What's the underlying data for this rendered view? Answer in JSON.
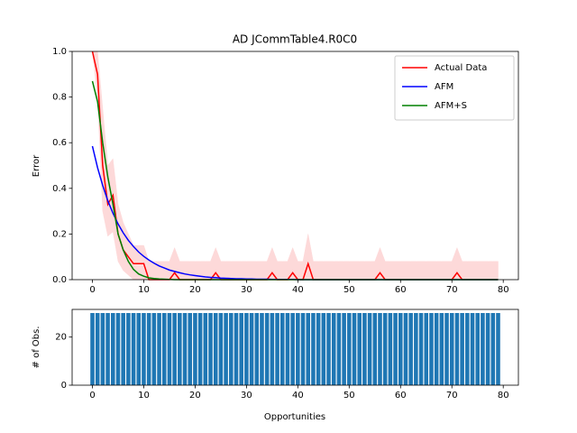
{
  "chart_data": [
    {
      "type": "line",
      "title": "AD JCommTable4.R0C0",
      "ylabel": "Error",
      "legend": "upper right",
      "x": [
        0,
        1,
        2,
        3,
        4,
        5,
        6,
        7,
        8,
        9,
        10,
        11,
        12,
        13,
        14,
        15,
        16,
        17,
        18,
        19,
        20,
        21,
        22,
        23,
        24,
        25,
        26,
        27,
        28,
        29,
        30,
        31,
        32,
        33,
        34,
        35,
        36,
        37,
        38,
        39,
        40,
        41,
        42,
        43,
        44,
        45,
        46,
        47,
        48,
        49,
        50,
        51,
        52,
        53,
        54,
        55,
        56,
        57,
        58,
        59,
        60,
        61,
        62,
        63,
        64,
        65,
        66,
        67,
        68,
        69,
        70,
        71,
        72,
        73,
        74,
        75,
        76,
        77,
        78,
        79
      ],
      "xlim": [
        -3.95,
        82.95
      ],
      "xticks": [
        0,
        10,
        20,
        30,
        40,
        50,
        60,
        70,
        80
      ],
      "ylim": [
        0,
        1
      ],
      "yticks": [
        {
          "value": 0,
          "label": "0.0"
        },
        {
          "value": 0.2,
          "label": "0.2"
        },
        {
          "value": 0.4,
          "label": "0.4"
        },
        {
          "value": 0.6,
          "label": "0.6"
        },
        {
          "value": 0.8,
          "label": "0.8"
        },
        {
          "value": 1,
          "label": "1.0"
        }
      ],
      "band": {
        "color": "#fdd9d9",
        "upper": [
          1.0,
          1.0,
          0.75,
          0.5,
          0.53,
          0.33,
          0.25,
          0.2,
          0.15,
          0.15,
          0.15,
          0.08,
          0.08,
          0.08,
          0.08,
          0.08,
          0.14,
          0.08,
          0.08,
          0.08,
          0.08,
          0.08,
          0.08,
          0.08,
          0.14,
          0.08,
          0.08,
          0.08,
          0.08,
          0.08,
          0.08,
          0.08,
          0.08,
          0.08,
          0.08,
          0.14,
          0.08,
          0.08,
          0.08,
          0.14,
          0.08,
          0.08,
          0.2,
          0.08,
          0.08,
          0.08,
          0.08,
          0.08,
          0.08,
          0.08,
          0.08,
          0.08,
          0.08,
          0.08,
          0.08,
          0.08,
          0.14,
          0.08,
          0.08,
          0.08,
          0.08,
          0.08,
          0.08,
          0.08,
          0.08,
          0.08,
          0.08,
          0.08,
          0.08,
          0.08,
          0.08,
          0.14,
          0.08,
          0.08,
          0.08,
          0.08,
          0.08,
          0.08,
          0.08,
          0.08
        ],
        "lower": [
          1.0,
          0.8,
          0.3,
          0.19,
          0.21,
          0.08,
          0.04,
          0.02,
          0,
          0,
          0,
          0,
          0,
          0,
          0,
          0,
          0,
          0,
          0,
          0,
          0,
          0,
          0,
          0,
          0,
          0,
          0,
          0,
          0,
          0,
          0,
          0,
          0,
          0,
          0,
          0,
          0,
          0,
          0,
          0,
          0,
          0,
          0,
          0,
          0,
          0,
          0,
          0,
          0,
          0,
          0,
          0,
          0,
          0,
          0,
          0,
          0,
          0,
          0,
          0,
          0,
          0,
          0,
          0,
          0,
          0,
          0,
          0,
          0,
          0,
          0,
          0,
          0,
          0,
          0,
          0,
          0,
          0,
          0,
          0
        ]
      },
      "series": [
        {
          "name": "Actual Data",
          "color": "#ff0000",
          "values": [
            1.0,
            0.9,
            0.5,
            0.33,
            0.37,
            0.2,
            0.13,
            0.1,
            0.07,
            0.07,
            0.07,
            0,
            0,
            0,
            0,
            0,
            0.03,
            0,
            0,
            0,
            0,
            0,
            0,
            0,
            0.03,
            0,
            0,
            0,
            0,
            0,
            0,
            0,
            0,
            0,
            0,
            0.03,
            0,
            0,
            0,
            0.03,
            0,
            0,
            0.07,
            0,
            0,
            0,
            0,
            0,
            0,
            0,
            0,
            0,
            0,
            0,
            0,
            0,
            0.03,
            0,
            0,
            0,
            0,
            0,
            0,
            0,
            0,
            0,
            0,
            0,
            0,
            0,
            0,
            0.03,
            0,
            0,
            0,
            0,
            0,
            0,
            0,
            0
          ]
        },
        {
          "name": "AFM",
          "color": "#0000ff",
          "values": [
            0.585,
            0.491,
            0.413,
            0.346,
            0.291,
            0.244,
            0.205,
            0.172,
            0.145,
            0.121,
            0.102,
            0.086,
            0.072,
            0.06,
            0.051,
            0.042,
            0.036,
            0.03,
            0.025,
            0.021,
            0.018,
            0.015,
            0.012,
            0.01,
            0.009,
            0.007,
            0.006,
            0.005,
            0.004,
            0.004,
            0.003,
            0.003,
            0.002,
            0.002,
            0.002,
            0.001,
            0.001,
            0.001,
            0.001,
            0.001,
            0,
            0,
            0,
            0,
            0,
            0,
            0,
            0,
            0,
            0,
            0,
            0,
            0,
            0,
            0,
            0,
            0,
            0,
            0,
            0,
            0,
            0,
            0,
            0,
            0,
            0,
            0,
            0,
            0,
            0,
            0,
            0,
            0,
            0,
            0,
            0,
            0,
            0,
            0,
            0
          ]
        },
        {
          "name": "AFM+S",
          "color": "#008000",
          "values": [
            0.87,
            0.78,
            0.6,
            0.45,
            0.33,
            0.2,
            0.13,
            0.08,
            0.045,
            0.025,
            0.015,
            0.008,
            0.005,
            0.003,
            0.002,
            0.001,
            0,
            0,
            0,
            0,
            0,
            0,
            0,
            0,
            0,
            0,
            0,
            0,
            0,
            0,
            0,
            0,
            0,
            0,
            0,
            0,
            0,
            0,
            0,
            0,
            0,
            0,
            0,
            0,
            0,
            0,
            0,
            0,
            0,
            0,
            0,
            0,
            0,
            0,
            0,
            0,
            0,
            0,
            0,
            0,
            0,
            0,
            0,
            0,
            0,
            0,
            0,
            0,
            0,
            0,
            0,
            0,
            0,
            0,
            0,
            0,
            0,
            0,
            0,
            0
          ]
        }
      ]
    },
    {
      "type": "bar",
      "xlabel": "Opportunities",
      "ylabel": "# of Obs.",
      "color": "#1f77b4",
      "x": [
        0,
        1,
        2,
        3,
        4,
        5,
        6,
        7,
        8,
        9,
        10,
        11,
        12,
        13,
        14,
        15,
        16,
        17,
        18,
        19,
        20,
        21,
        22,
        23,
        24,
        25,
        26,
        27,
        28,
        29,
        30,
        31,
        32,
        33,
        34,
        35,
        36,
        37,
        38,
        39,
        40,
        41,
        42,
        43,
        44,
        45,
        46,
        47,
        48,
        49,
        50,
        51,
        52,
        53,
        54,
        55,
        56,
        57,
        58,
        59,
        60,
        61,
        62,
        63,
        64,
        65,
        66,
        67,
        68,
        69,
        70,
        71,
        72,
        73,
        74,
        75,
        76,
        77,
        78,
        79
      ],
      "values": [
        30,
        30,
        30,
        30,
        30,
        30,
        30,
        30,
        30,
        30,
        30,
        30,
        30,
        30,
        30,
        30,
        30,
        30,
        30,
        30,
        30,
        30,
        30,
        30,
        30,
        30,
        30,
        30,
        30,
        30,
        30,
        30,
        30,
        30,
        30,
        30,
        30,
        30,
        30,
        30,
        30,
        30,
        30,
        30,
        30,
        30,
        30,
        30,
        30,
        30,
        30,
        30,
        30,
        30,
        30,
        30,
        30,
        30,
        30,
        30,
        30,
        30,
        30,
        30,
        30,
        30,
        30,
        30,
        30,
        30,
        30,
        30,
        30,
        30,
        30,
        30,
        30,
        30,
        30,
        30
      ],
      "xlim": [
        -3.95,
        82.95
      ],
      "xticks": [
        0,
        10,
        20,
        30,
        40,
        50,
        60,
        70,
        80
      ],
      "ylim": [
        0,
        31.5
      ],
      "yticks": [
        0,
        20
      ]
    }
  ]
}
